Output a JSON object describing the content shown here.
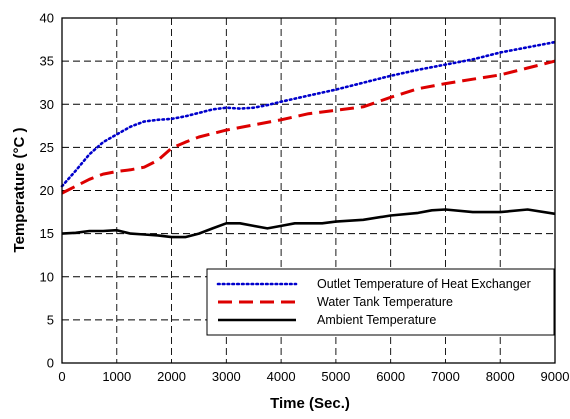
{
  "chart_data": {
    "type": "line",
    "title": "",
    "xlabel": "Time (Sec.)",
    "ylabel": "Temperature (°C )",
    "xlim": [
      0,
      9000
    ],
    "ylim": [
      0,
      40
    ],
    "x_ticks": [
      0,
      1000,
      2000,
      3000,
      4000,
      5000,
      6000,
      7000,
      8000,
      9000
    ],
    "y_ticks": [
      0,
      5,
      10,
      15,
      20,
      25,
      30,
      35,
      40
    ],
    "x_tick_labels": [
      "0",
      "1000",
      "2000",
      "3000",
      "4000",
      "5000",
      "6000",
      "7000",
      "8000",
      "9000"
    ],
    "y_tick_labels": [
      "0",
      "5",
      "10",
      "15",
      "20",
      "25",
      "30",
      "35",
      "40"
    ],
    "grid": true,
    "legend_position": "bottom-right",
    "series": [
      {
        "name": "Outlet Temperature of Heat Exchanger",
        "color": "#0000cc",
        "style": "dotted",
        "x": [
          0,
          250,
          500,
          750,
          1000,
          1250,
          1500,
          1750,
          2000,
          2250,
          2500,
          2750,
          3000,
          3250,
          3500,
          3750,
          4000,
          4500,
          5000,
          5500,
          6000,
          6500,
          7000,
          7500,
          8000,
          8500,
          9000
        ],
        "y": [
          20.5,
          22.3,
          24.2,
          25.6,
          26.5,
          27.4,
          28.0,
          28.2,
          28.3,
          28.6,
          29.0,
          29.4,
          29.6,
          29.5,
          29.6,
          29.9,
          30.3,
          31.0,
          31.7,
          32.5,
          33.3,
          34.0,
          34.6,
          35.2,
          36.0,
          36.6,
          37.2
        ]
      },
      {
        "name": "Water Tank Temperature",
        "color": "#dd0000",
        "style": "dashed",
        "x": [
          0,
          250,
          500,
          750,
          1000,
          1250,
          1500,
          1750,
          2000,
          2250,
          2500,
          3000,
          3500,
          4000,
          4500,
          5000,
          5500,
          6000,
          6500,
          7000,
          7500,
          8000,
          8500,
          9000
        ],
        "y": [
          19.7,
          20.5,
          21.3,
          21.9,
          22.2,
          22.4,
          22.7,
          23.5,
          24.9,
          25.6,
          26.2,
          27.0,
          27.6,
          28.2,
          28.9,
          29.3,
          29.7,
          30.8,
          31.8,
          32.4,
          32.9,
          33.4,
          34.2,
          35.0
        ]
      },
      {
        "name": "Ambient Temperature",
        "color": "#000000",
        "style": "solid",
        "x": [
          0,
          250,
          500,
          750,
          1000,
          1250,
          1500,
          1750,
          2000,
          2250,
          2500,
          2750,
          3000,
          3250,
          3500,
          3750,
          4000,
          4250,
          4500,
          4750,
          5000,
          5500,
          6000,
          6500,
          6750,
          7000,
          7500,
          8000,
          8500,
          9000
        ],
        "y": [
          15.0,
          15.1,
          15.3,
          15.3,
          15.4,
          15.0,
          14.9,
          14.8,
          14.6,
          14.6,
          15.0,
          15.6,
          16.2,
          16.2,
          15.9,
          15.6,
          15.9,
          16.2,
          16.2,
          16.2,
          16.4,
          16.6,
          17.1,
          17.4,
          17.7,
          17.8,
          17.5,
          17.5,
          17.8,
          17.3
        ]
      }
    ]
  }
}
